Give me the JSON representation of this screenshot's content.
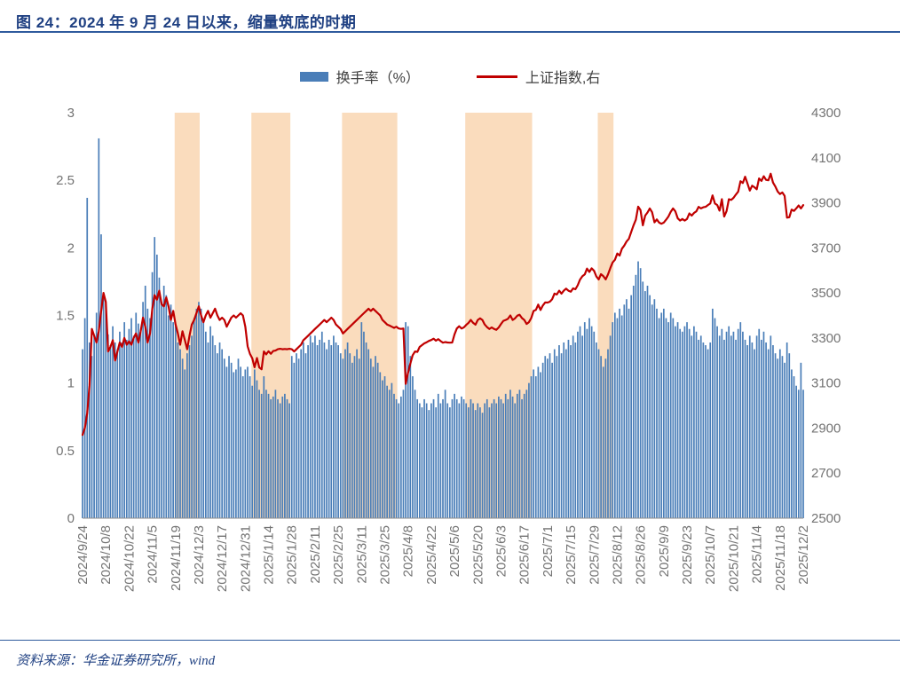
{
  "header": {
    "title": "图 24：2024 年 9 月 24 日以来，缩量筑底的时期"
  },
  "legend": {
    "bar_label": "换手率（%）",
    "line_label": "上证指数,右"
  },
  "footer": {
    "source": "资料来源：华金证券研究所，wind"
  },
  "colors": {
    "bar": "#4a7eb8",
    "line": "#c00000",
    "band": "#fadcbd",
    "axis_text": "#737373",
    "axis_line": "#8c8c8c",
    "accent_blue": "#2f5b9d",
    "title_text": "#1f4082"
  },
  "chart_data": {
    "type": "bar",
    "subtype": "combo-bar-line",
    "title": "图 24：2024 年 9 月 24 日以来，缩量筑底的时期",
    "grid": false,
    "legend_position": "top-center",
    "points_per_label": 10,
    "n_points": 311,
    "x_labels": [
      "2024/9/24",
      "2024/10/8",
      "2024/10/22",
      "2024/11/5",
      "2024/11/19",
      "2024/12/3",
      "2024/12/17",
      "2024/12/31",
      "2025/1/14",
      "2025/1/28",
      "2025/2/11",
      "2025/2/25",
      "2025/3/11",
      "2025/3/25",
      "2025/4/8",
      "2025/4/22",
      "2025/5/6",
      "2025/5/20",
      "2025/6/3",
      "2025/6/17",
      "2025/7/1",
      "2025/7/15",
      "2025/7/29",
      "2025/8/12",
      "2025/8/26",
      "2025/9/9",
      "2025/9/23",
      "2025/10/7",
      "2025/10/21",
      "2025/11/4",
      "2025/11/18",
      "2025/12/2"
    ],
    "left_axis": {
      "min": 0,
      "max": 3,
      "ticks": [
        "0",
        "0.5",
        "1",
        "1.5",
        "2",
        "2.5",
        "3"
      ],
      "series": "换手率（%）"
    },
    "right_axis": {
      "min": 2500,
      "max": 4300,
      "ticks": [
        "2500",
        "2700",
        "2900",
        "3100",
        "3300",
        "3500",
        "3700",
        "3900",
        "4100",
        "4300"
      ],
      "series": "上证指数"
    },
    "highlight_bands": {
      "meaning": "缩量筑底的时期",
      "ranges": [
        {
          "start_index": 40,
          "end_index": 50
        },
        {
          "start_index": 73,
          "end_index": 89
        },
        {
          "start_index": 112,
          "end_index": 135
        },
        {
          "start_index": 165,
          "end_index": 193
        },
        {
          "start_index": 222,
          "end_index": 228
        }
      ]
    },
    "series": [
      {
        "name": "换手率（%）",
        "type": "bar",
        "axis": "left",
        "color": "#4a7eb8",
        "values": [
          1.25,
          1.48,
          2.37,
          1.3,
          1.2,
          1.35,
          1.52,
          2.81,
          2.1,
          1.65,
          1.58,
          1.36,
          1.28,
          1.42,
          1.3,
          1.25,
          1.38,
          1.3,
          1.45,
          1.32,
          1.4,
          1.48,
          1.35,
          1.52,
          1.44,
          1.38,
          1.6,
          1.72,
          1.55,
          1.48,
          1.82,
          2.08,
          1.95,
          1.78,
          1.6,
          1.72,
          1.65,
          1.5,
          1.58,
          1.45,
          1.42,
          1.3,
          1.25,
          1.18,
          1.1,
          1.22,
          1.28,
          1.35,
          1.48,
          1.55,
          1.6,
          1.55,
          1.45,
          1.38,
          1.3,
          1.42,
          1.35,
          1.28,
          1.22,
          1.3,
          1.25,
          1.18,
          1.12,
          1.2,
          1.15,
          1.08,
          1.1,
          1.18,
          1.12,
          1.05,
          1.1,
          1.12,
          1.05,
          0.98,
          1.1,
          1.02,
          0.95,
          0.92,
          1.05,
          0.95,
          0.92,
          0.88,
          0.9,
          0.95,
          0.88,
          0.85,
          0.9,
          0.92,
          0.88,
          0.85,
          1.2,
          1.15,
          1.22,
          1.18,
          1.25,
          1.3,
          1.22,
          1.28,
          1.35,
          1.3,
          1.35,
          1.28,
          1.32,
          1.38,
          1.3,
          1.25,
          1.32,
          1.28,
          1.35,
          1.3,
          1.28,
          1.22,
          1.18,
          1.25,
          1.3,
          1.22,
          1.15,
          1.2,
          1.25,
          1.18,
          1.45,
          1.38,
          1.3,
          1.25,
          1.18,
          1.12,
          1.2,
          1.15,
          1.08,
          1.02,
          1.05,
          0.98,
          0.95,
          1.0,
          0.92,
          0.88,
          0.85,
          0.9,
          0.95,
          1.45,
          1.42,
          1.2,
          1.05,
          0.95,
          0.88,
          0.85,
          0.82,
          0.88,
          0.85,
          0.8,
          0.85,
          0.88,
          0.82,
          0.92,
          0.85,
          0.88,
          0.95,
          0.85,
          0.82,
          0.88,
          0.92,
          0.88,
          0.85,
          0.9,
          0.88,
          0.85,
          0.82,
          0.88,
          0.85,
          0.8,
          0.85,
          0.82,
          0.78,
          0.85,
          0.88,
          0.82,
          0.85,
          0.88,
          0.85,
          0.9,
          0.88,
          0.85,
          0.92,
          0.88,
          0.95,
          0.9,
          0.85,
          0.92,
          0.95,
          0.88,
          0.92,
          0.95,
          1.0,
          1.05,
          1.1,
          1.05,
          1.12,
          1.08,
          1.15,
          1.2,
          1.18,
          1.22,
          1.15,
          1.25,
          1.2,
          1.28,
          1.22,
          1.3,
          1.25,
          1.32,
          1.28,
          1.35,
          1.3,
          1.38,
          1.42,
          1.35,
          1.45,
          1.4,
          1.48,
          1.42,
          1.38,
          1.3,
          1.25,
          1.2,
          1.12,
          1.18,
          1.25,
          1.35,
          1.45,
          1.52,
          1.48,
          1.55,
          1.5,
          1.58,
          1.62,
          1.55,
          1.65,
          1.72,
          1.8,
          1.9,
          1.85,
          1.75,
          1.68,
          1.72,
          1.65,
          1.58,
          1.62,
          1.55,
          1.48,
          1.52,
          1.55,
          1.48,
          1.45,
          1.52,
          1.48,
          1.42,
          1.45,
          1.4,
          1.38,
          1.42,
          1.45,
          1.4,
          1.35,
          1.42,
          1.38,
          1.32,
          1.35,
          1.3,
          1.28,
          1.25,
          1.3,
          1.55,
          1.48,
          1.42,
          1.35,
          1.4,
          1.32,
          1.38,
          1.42,
          1.35,
          1.38,
          1.32,
          1.4,
          1.45,
          1.38,
          1.32,
          1.28,
          1.35,
          1.3,
          1.25,
          1.35,
          1.4,
          1.32,
          1.38,
          1.3,
          1.25,
          1.35,
          1.28,
          1.22,
          1.18,
          1.25,
          1.2,
          1.15,
          1.3,
          1.22,
          1.1,
          1.05,
          0.98,
          0.95,
          1.15,
          0.95
        ]
      },
      {
        "name": "上证指数,右",
        "type": "line",
        "axis": "right",
        "color": "#c00000",
        "values": [
          2870,
          2900,
          2965,
          3090,
          3340,
          3310,
          3280,
          3330,
          3420,
          3500,
          3460,
          3240,
          3260,
          3290,
          3200,
          3240,
          3280,
          3260,
          3300,
          3270,
          3285,
          3270,
          3300,
          3320,
          3280,
          3330,
          3390,
          3350,
          3280,
          3320,
          3430,
          3490,
          3470,
          3510,
          3450,
          3440,
          3480,
          3440,
          3380,
          3420,
          3360,
          3320,
          3270,
          3330,
          3290,
          3250,
          3310,
          3360,
          3380,
          3410,
          3440,
          3400,
          3370,
          3400,
          3420,
          3390,
          3410,
          3430,
          3400,
          3380,
          3390,
          3380,
          3350,
          3370,
          3390,
          3400,
          3390,
          3400,
          3410,
          3400,
          3350,
          3263,
          3230,
          3210,
          3170,
          3211,
          3169,
          3161,
          3240,
          3227,
          3241,
          3230,
          3242,
          3244,
          3250,
          3252,
          3250,
          3251,
          3250,
          3252,
          3250,
          3240,
          3250,
          3260,
          3270,
          3290,
          3300,
          3310,
          3320,
          3330,
          3340,
          3350,
          3360,
          3370,
          3380,
          3370,
          3380,
          3390,
          3380,
          3360,
          3350,
          3340,
          3320,
          3330,
          3340,
          3350,
          3360,
          3370,
          3380,
          3390,
          3400,
          3410,
          3420,
          3430,
          3420,
          3430,
          3420,
          3410,
          3400,
          3380,
          3370,
          3360,
          3355,
          3350,
          3345,
          3350,
          3342,
          3340,
          3342,
          3096,
          3145,
          3186,
          3223,
          3240,
          3238,
          3260,
          3268,
          3276,
          3281,
          3287,
          3291,
          3297,
          3288,
          3295,
          3286,
          3279,
          3282,
          3280,
          3279,
          3280,
          3316,
          3342,
          3352,
          3342,
          3347,
          3358,
          3367,
          3380,
          3367,
          3359,
          3380,
          3387,
          3380,
          3360,
          3348,
          3340,
          3347,
          3340,
          3336,
          3347,
          3362,
          3376,
          3380,
          3385,
          3400,
          3380,
          3387,
          3399,
          3403,
          3388,
          3380,
          3362,
          3370,
          3388,
          3420,
          3425,
          3448,
          3424,
          3444,
          3458,
          3457,
          3461,
          3472,
          3497,
          3493,
          3510,
          3497,
          3510,
          3519,
          3510,
          3505,
          3520,
          3516,
          3534,
          3559,
          3574,
          3582,
          3608,
          3593,
          3609,
          3598,
          3573,
          3560,
          3583,
          3575,
          3560,
          3582,
          3610,
          3635,
          3647,
          3675,
          3666,
          3696,
          3710,
          3728,
          3740,
          3771,
          3800,
          3825,
          3883,
          3868,
          3800,
          3843,
          3857,
          3875,
          3858,
          3813,
          3826,
          3812,
          3807,
          3812,
          3825,
          3839,
          3860,
          3875,
          3862,
          3831,
          3821,
          3828,
          3821,
          3828,
          3853,
          3843,
          3855,
          3862,
          3882,
          3875,
          3880,
          3882,
          3890,
          3897,
          3933,
          3897,
          3890,
          3865,
          3916,
          3839,
          3863,
          3916,
          3913,
          3922,
          3936,
          3950,
          3996,
          3988,
          4016,
          3986,
          3954,
          3976,
          3969,
          3960,
          4008,
          3997,
          4018,
          4002,
          4000,
          4029,
          3990,
          3972,
          3950,
          3939,
          3946,
          3931,
          3834,
          3836,
          3870,
          3864,
          3875,
          3888,
          3875,
          3890
        ]
      }
    ]
  }
}
